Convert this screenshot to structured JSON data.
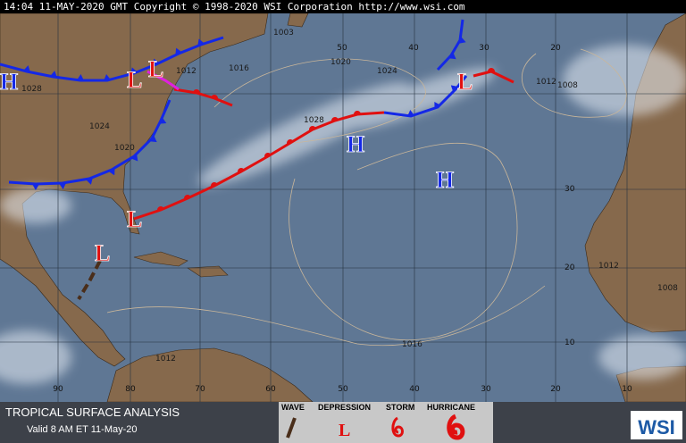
{
  "header": {
    "text": "14:04 11-MAY-2020 GMT Copyright © 1998-2020 WSI Corporation  http://www.wsi.com"
  },
  "isobar_labels": [
    "1028",
    "1024",
    "1020",
    "1016",
    "1012",
    "1003",
    "1020",
    "1024",
    "1028",
    "1012",
    "1008",
    "1016",
    "1012",
    "1012",
    "1008"
  ],
  "longitude_labels_bottom": [
    "90",
    "80",
    "70",
    "60",
    "50",
    "40",
    "30",
    "20",
    "10"
  ],
  "longitude_labels_top": [
    "50",
    "40",
    "30",
    "20"
  ],
  "latitude_labels": [
    "30",
    "20",
    "10"
  ],
  "pressure_centers": [
    "H",
    "L",
    "L",
    "H",
    "H",
    "L",
    "L",
    "L"
  ],
  "footer": {
    "title": "TROPICAL SURFACE ANALYSIS",
    "valid": "Valid 8 AM ET 11-May-20"
  },
  "legend": {
    "items": [
      "WAVE",
      "DEPRESSION",
      "STORM",
      "HURRICANE"
    ],
    "depression_symbol": "L"
  },
  "logo": "WSI"
}
